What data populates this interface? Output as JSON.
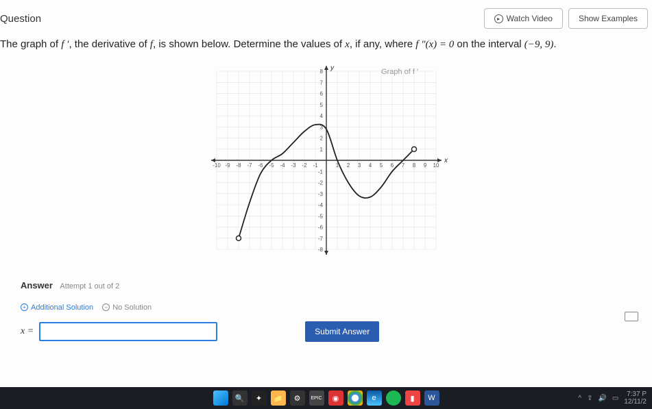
{
  "header": {
    "title": "Question",
    "watch_video": "Watch Video",
    "show_examples": "Show Examples"
  },
  "problem": {
    "pre": "The graph of ",
    "fprime": "f ′",
    "mid1": ", the derivative of ",
    "f": "f",
    "mid2": ", is shown below. Determine the values of ",
    "x": "x",
    "mid3": ", if any, where ",
    "fpp": "f ″(x) = 0",
    "mid4": " on the interval ",
    "interval": "(−9, 9)",
    "end": "."
  },
  "graph": {
    "label": "Graph of f ′",
    "xaxis_label": "x",
    "yaxis_label": "y",
    "x_min": -10,
    "x_max": 10,
    "y_min": -8,
    "y_max": 8,
    "grid_color": "#d8e0e8",
    "axis_color": "#333333",
    "curve_color": "#222222",
    "tick_fontsize": 8,
    "open_points": [
      {
        "x": -8,
        "y": -7
      },
      {
        "x": 8,
        "y": 1
      }
    ],
    "curve_points": [
      {
        "x": -8,
        "y": -7
      },
      {
        "x": -7,
        "y": -3.8
      },
      {
        "x": -6,
        "y": -1.2
      },
      {
        "x": -5,
        "y": 0
      },
      {
        "x": -4,
        "y": 0.6
      },
      {
        "x": -3,
        "y": 1.6
      },
      {
        "x": -2,
        "y": 2.6
      },
      {
        "x": -1,
        "y": 3.2
      },
      {
        "x": 0,
        "y": 2.8
      },
      {
        "x": 1,
        "y": 0
      },
      {
        "x": 2,
        "y": -2
      },
      {
        "x": 3,
        "y": -3.2
      },
      {
        "x": 4,
        "y": -3.3
      },
      {
        "x": 5,
        "y": -2.4
      },
      {
        "x": 6,
        "y": -1
      },
      {
        "x": 7,
        "y": 0
      },
      {
        "x": 8,
        "y": 1
      }
    ]
  },
  "answer": {
    "label": "Answer",
    "attempt": "Attempt 1 out of 2",
    "additional": "Additional Solution",
    "no_solution": "No Solution",
    "x_eq": "x =",
    "value": "",
    "submit": "Submit Answer"
  },
  "taskbar": {
    "time": "7:37 P",
    "date": "12/11/2"
  }
}
